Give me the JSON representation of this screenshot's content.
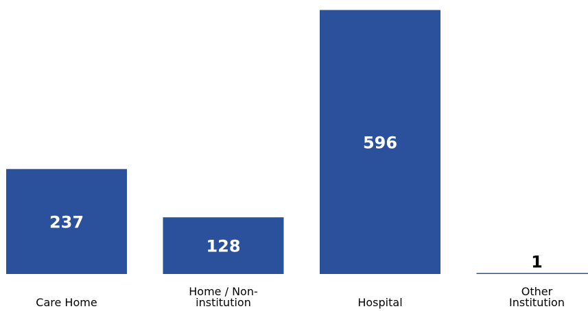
{
  "chart_data": {
    "type": "bar",
    "categories": [
      [
        "Care Home"
      ],
      [
        "Home / Non-",
        "institution"
      ],
      [
        "Hospital"
      ],
      [
        "Other",
        "Institution"
      ]
    ],
    "values": [
      237,
      128,
      596,
      1
    ],
    "data_labels": [
      "237",
      "128",
      "596",
      "1"
    ],
    "title": "",
    "xlabel": "",
    "ylabel": "",
    "ylim": [
      0,
      600
    ],
    "grid": false,
    "legend": "none",
    "bar_color": "#2b519c",
    "label_color_inside": "#ffffff",
    "label_color_outside": "#000000"
  }
}
